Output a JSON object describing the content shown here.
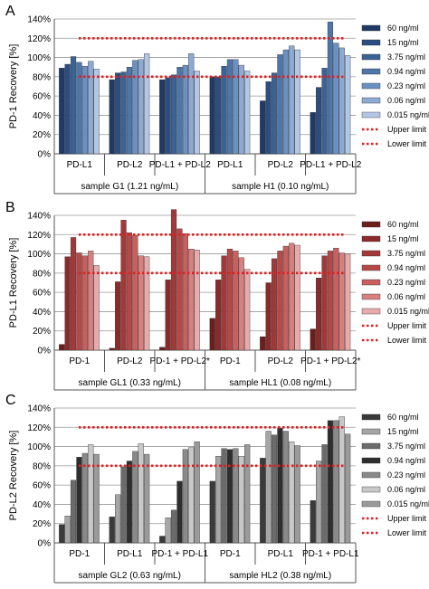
{
  "legend_labels": [
    "60 ng/ml",
    "15 ng/ml",
    "3.75 ng/ml",
    "0.94 ng/ml",
    "0.23 ng/ml",
    "0.06 ng/ml",
    "0.015 ng/ml"
  ],
  "limit_labels": {
    "upper": "Upper limit",
    "lower": "Lower limit"
  },
  "limit_color": "#e02020",
  "chart_data": [
    {
      "panel": "A",
      "type": "bar",
      "ylabel": "PD-1 Recovery [%]",
      "ylim": [
        0,
        140
      ],
      "yticks": [
        "0%",
        "20%",
        "40%",
        "60%",
        "80%",
        "100%",
        "120%",
        "140%"
      ],
      "upper_limit": 120,
      "lower_limit": 80,
      "categories": [
        "PD-L1",
        "PD-L2",
        "PD-L1 + PD-L2",
        "PD-L1",
        "PD-L2",
        "PD-L1 + PD-L2"
      ],
      "samples": [
        "sample G1 (1.21 ng/mL)",
        "sample H1 (0.10 ng/mL)"
      ],
      "colors": [
        "#1f3a66",
        "#2b4d80",
        "#3a6296",
        "#4d77ab",
        "#6a91c2",
        "#8caad2",
        "#b3c6e4"
      ],
      "series": [
        {
          "name": "60 ng/ml",
          "values": [
            89,
            77,
            77,
            80,
            55,
            43
          ]
        },
        {
          "name": "15 ng/ml",
          "values": [
            93,
            84,
            79,
            80,
            75,
            69
          ]
        },
        {
          "name": "3.75 ng/ml",
          "values": [
            101,
            85,
            82,
            91,
            84,
            89
          ]
        },
        {
          "name": "0.94 ng/ml",
          "values": [
            95,
            90,
            90,
            98,
            103,
            137
          ]
        },
        {
          "name": "0.23 ng/ml",
          "values": [
            91,
            97,
            92,
            98,
            108,
            115
          ]
        },
        {
          "name": "0.06 ng/ml",
          "values": [
            96,
            98,
            104,
            92,
            112,
            110
          ]
        },
        {
          "name": "0.015 ng/ml",
          "values": [
            88,
            104,
            86,
            86,
            108,
            102
          ]
        }
      ]
    },
    {
      "panel": "B",
      "type": "bar",
      "ylabel": "PD-L1 Recovery [%]",
      "ylim": [
        0,
        140
      ],
      "yticks": [
        "0%",
        "20%",
        "40%",
        "60%",
        "80%",
        "100%",
        "120%",
        "140%"
      ],
      "upper_limit": 120,
      "lower_limit": 80,
      "categories": [
        "PD-1",
        "PD-L2",
        "PD-1 + PD-L2*",
        "PD-1",
        "PD-L2",
        "PD-1 + PD-L2*"
      ],
      "samples": [
        "sample GL1 (0.33 ng/mL)",
        "sample HL1 (0.08 ng/mL)"
      ],
      "colors": [
        "#6e1d1d",
        "#8b2a2a",
        "#a33838",
        "#b84848",
        "#c96060",
        "#d88080",
        "#e8aaaa"
      ],
      "series": [
        {
          "name": "60 ng/ml",
          "values": [
            6,
            2,
            3,
            33,
            14,
            22
          ]
        },
        {
          "name": "15 ng/ml",
          "values": [
            97,
            71,
            73,
            73,
            70,
            75
          ]
        },
        {
          "name": "3.75 ng/ml",
          "values": [
            117,
            135,
            146,
            98,
            95,
            98
          ]
        },
        {
          "name": "0.94 ng/ml",
          "values": [
            101,
            122,
            126,
            105,
            103,
            103
          ]
        },
        {
          "name": "0.23 ng/ml",
          "values": [
            98,
            119,
            121,
            103,
            108,
            106
          ]
        },
        {
          "name": "0.06 ng/ml",
          "values": [
            103,
            98,
            105,
            96,
            111,
            101
          ]
        },
        {
          "name": "0.015 ng/ml",
          "values": [
            88,
            97,
            104,
            84,
            109,
            100
          ]
        }
      ]
    },
    {
      "panel": "C",
      "type": "bar",
      "ylabel": "PD-L2 Recovery [%]",
      "ylim": [
        0,
        140
      ],
      "yticks": [
        "0%",
        "20%",
        "40%",
        "60%",
        "80%",
        "100%",
        "120%",
        "140%"
      ],
      "upper_limit": 120,
      "lower_limit": 80,
      "categories": [
        "PD-1",
        "PD-L1",
        "PD-1 + PD-L1",
        "PD-1",
        "PD-L1",
        "PD-1 + PD-L1"
      ],
      "samples": [
        "sample GL2 (0.63 ng/mL)",
        "sample HL2 (0.38 ng/mL)"
      ],
      "colors": [
        "#3a3a3a",
        "#a6a6a6",
        "#6b6b6b",
        "#2e2e2e",
        "#8a8a8a",
        "#c8c8c8",
        "#9a9a9a"
      ],
      "series": [
        {
          "name": "60 ng/ml",
          "values": [
            19,
            27,
            7,
            64,
            88,
            44
          ]
        },
        {
          "name": "15 ng/ml",
          "values": [
            28,
            50,
            26,
            90,
            116,
            85
          ]
        },
        {
          "name": "3.75 ng/ml",
          "values": [
            65,
            79,
            34,
            98,
            112,
            102
          ]
        },
        {
          "name": "0.94 ng/ml",
          "values": [
            89,
            85,
            64,
            97,
            119,
            127
          ]
        },
        {
          "name": "0.23 ng/ml",
          "values": [
            93,
            95,
            97,
            98,
            116,
            127
          ]
        },
        {
          "name": "0.06 ng/ml",
          "values": [
            102,
            103,
            99,
            90,
            105,
            131
          ]
        },
        {
          "name": "0.015 ng/ml",
          "values": [
            92,
            92,
            105,
            102,
            101,
            113
          ]
        }
      ]
    }
  ]
}
